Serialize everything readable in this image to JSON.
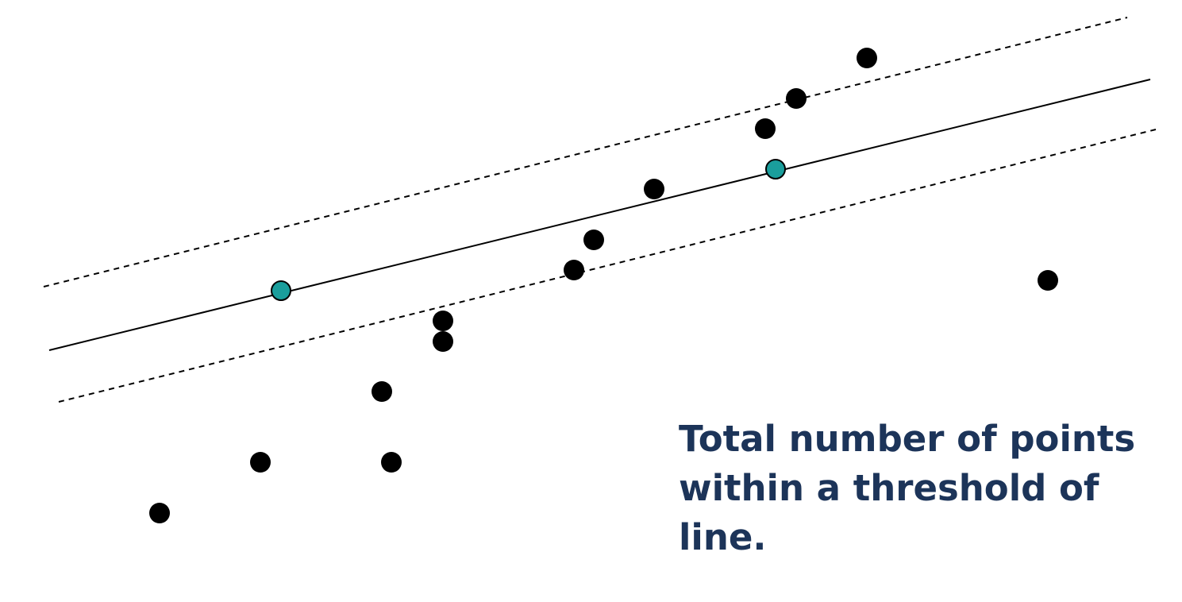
{
  "caption": "Total number of points within a threshold of line.",
  "colors": {
    "background": "#ffffff",
    "point": "#000000",
    "sample_point": "#1a9e9c",
    "line": "#000000",
    "caption": "#1c3459"
  },
  "diagram": {
    "fitted_line_style": "solid",
    "threshold_line_style": "dashed",
    "sample_point_count": 2,
    "data_point_count": 15
  }
}
